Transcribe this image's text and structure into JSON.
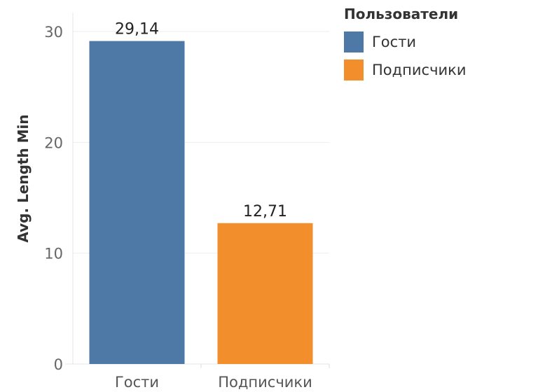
{
  "chart_data": {
    "type": "bar",
    "categories": [
      "Гости",
      "Подписчики"
    ],
    "values": [
      29.14,
      12.71
    ],
    "value_labels": [
      "29,14",
      "12,71"
    ],
    "ylabel": "Avg. Length Min",
    "xlabel": "",
    "ylim": [
      0,
      30
    ],
    "yticks": [
      "0",
      "10",
      "20",
      "30"
    ],
    "colors": [
      "#4e79a7",
      "#f28e2b"
    ],
    "grid": true,
    "legend_position": "top-right"
  },
  "legend": {
    "title": "Пользователи",
    "items": [
      {
        "label": "Гости",
        "color": "#4e79a7"
      },
      {
        "label": "Подписчики",
        "color": "#f28e2b"
      }
    ]
  }
}
